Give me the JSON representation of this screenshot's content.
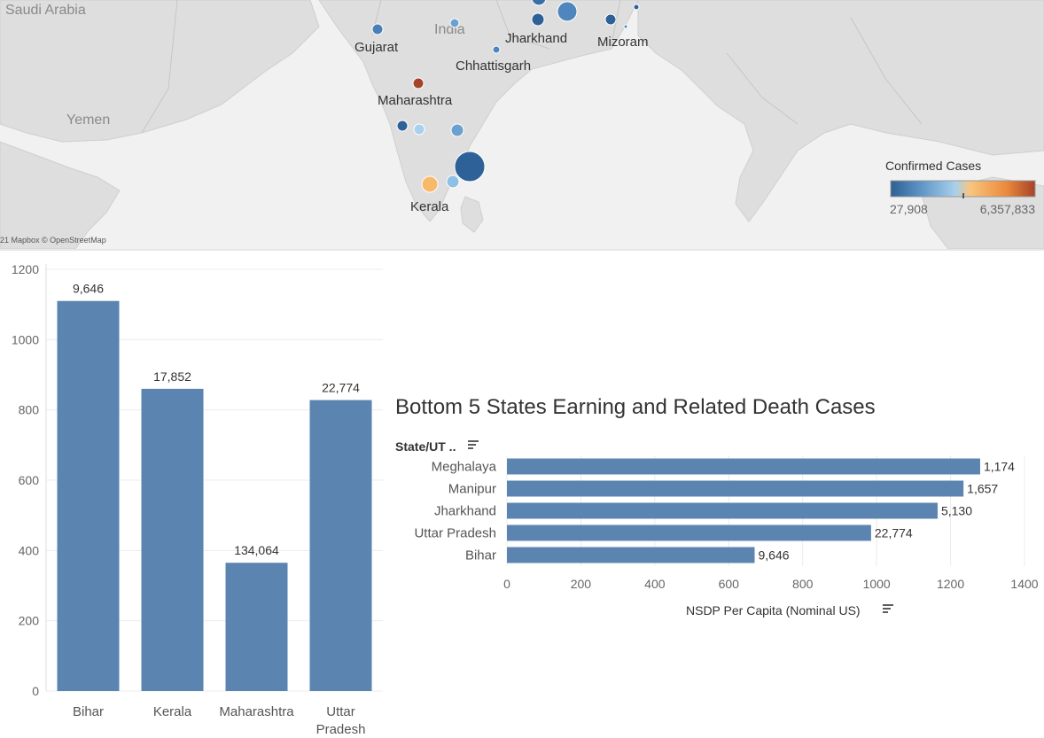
{
  "map": {
    "country_labels": [
      "Saudi Arabia",
      "Yemen",
      "India"
    ],
    "credit": "21 Mapbox © OpenStreetMap",
    "legend": {
      "title": "Confirmed Cases",
      "min_label": "27,908",
      "max_label": "6,357,833",
      "colors": [
        "#2e5f92",
        "#5b93c4",
        "#a9d0ec",
        "#f8c57e",
        "#ec8a3c",
        "#a5432a"
      ]
    },
    "state_labels": [
      "Gujarat",
      "Jharkhand",
      "Mizoram",
      "Chhattisgarh",
      "Maharashtra",
      "Kerala"
    ],
    "markers": [
      {
        "color": "#3a6ea5"
      },
      {
        "color": "#4f86bd"
      },
      {
        "color": "#2f6199"
      },
      {
        "color": "#6aa1d1"
      },
      {
        "color": "#2f6199"
      },
      {
        "color": "#2f6199"
      },
      {
        "color": "#4f86bd"
      },
      {
        "color": "#4a7fb7"
      },
      {
        "color": "#a5432a"
      },
      {
        "color": "#2f6199"
      },
      {
        "color": "#a9d0ec"
      },
      {
        "color": "#6aa1d1"
      },
      {
        "color": "#2f6199"
      },
      {
        "color": "#8fc0e6"
      },
      {
        "color": "#f8b96a"
      },
      {
        "color": "#4f86bd"
      }
    ]
  },
  "chart_data": [
    {
      "type": "bar",
      "categories": [
        "Bihar",
        "Kerala",
        "Maharashtra",
        "Uttar Pradesh"
      ],
      "values": [
        1110,
        860,
        365,
        828
      ],
      "data_labels": [
        "9,646",
        "17,852",
        "134,064",
        "22,774"
      ],
      "ylim": [
        0,
        1200
      ],
      "yticks": [
        0,
        200,
        400,
        600,
        800,
        1000,
        1200
      ],
      "grid": true,
      "bar_color": "#5b84b1"
    },
    {
      "type": "bar",
      "orientation": "horizontal",
      "title": "Bottom 5 States Earning and Related Death Cases",
      "ylabel": "State/UT ..",
      "xlabel": "NSDP Per Capita (Nominal US)",
      "categories": [
        "Meghalaya",
        "Manipur",
        "Jharkhand",
        "Uttar Pradesh",
        "Bihar"
      ],
      "values": [
        1280,
        1235,
        1165,
        985,
        670
      ],
      "data_labels": [
        "1,174",
        "1,657",
        "5,130",
        "22,774",
        "9,646"
      ],
      "xlim": [
        0,
        1400
      ],
      "xticks": [
        0,
        200,
        400,
        600,
        800,
        1000,
        1200,
        1400
      ],
      "grid": true,
      "bar_color": "#5b84b1"
    }
  ]
}
